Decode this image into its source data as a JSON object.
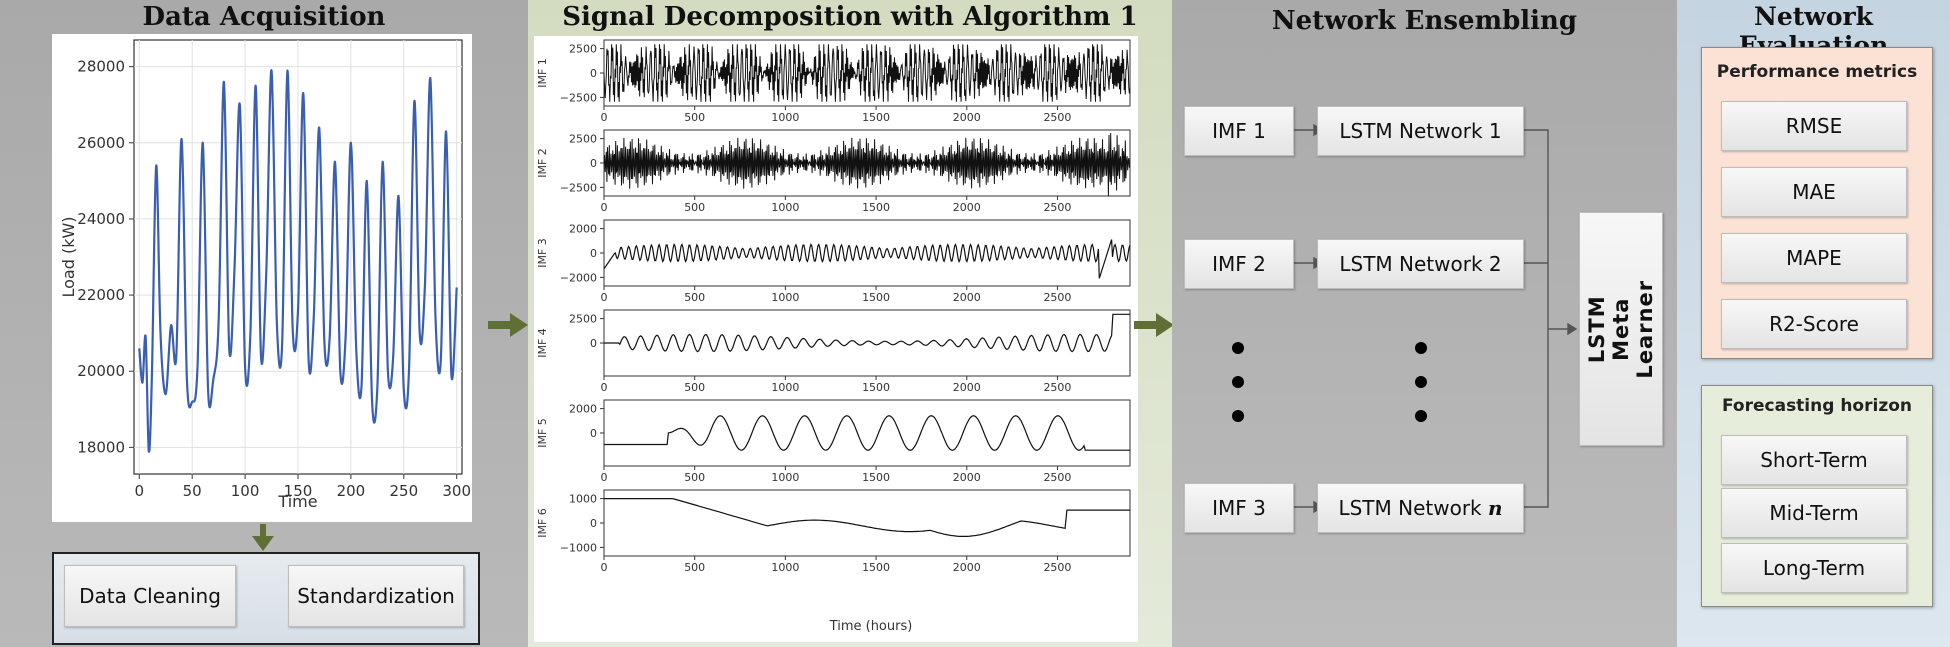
{
  "panels": {
    "acquisition": {
      "title": "Data Acquisition",
      "steps": [
        "Data Cleaning",
        "Standardization"
      ],
      "chart": {
        "xlabel": "Time",
        "ylabel": "Load (kW)",
        "xticks": [
          "0",
          "50",
          "100",
          "150",
          "200",
          "250",
          "300"
        ],
        "yticks": [
          "18000",
          "20000",
          "22000",
          "24000",
          "26000",
          "28000"
        ]
      }
    },
    "decomposition": {
      "title": "Signal Decomposition with Algorithm 1",
      "xlabel": "Time (hours)",
      "xticks": [
        "0",
        "500",
        "1000",
        "1500",
        "2000",
        "2500"
      ]
    },
    "ensembling": {
      "title": "Network Ensembling",
      "rows": [
        {
          "imf": "IMF 1",
          "net": "LSTM Network 1"
        },
        {
          "imf": "IMF 2",
          "net": "LSTM Network 2"
        },
        {
          "imf": "IMF 3",
          "net": "LSTM Network",
          "net_suffix": "n"
        }
      ],
      "meta_learner": "LSTM Meta Learner"
    },
    "evaluation": {
      "title": "Network Evaluation",
      "metrics_title": "Performance metrics",
      "metrics": [
        "RMSE",
        "MAE",
        "MAPE",
        "R2-Score"
      ],
      "horizon_title": "Forecasting horizon",
      "horizons": [
        "Short-Term",
        "Mid-Term",
        "Long-Term"
      ]
    }
  },
  "chart_data": [
    {
      "type": "line",
      "xlabel": "Time",
      "ylabel": "Load (kW)",
      "xlim": [
        -5,
        305
      ],
      "ylim": [
        17300,
        28700
      ],
      "series": [
        {
          "x": [
            0,
            3,
            6,
            9,
            12,
            16,
            20,
            25,
            30,
            35,
            40,
            45,
            50,
            55,
            60,
            65,
            70,
            75,
            80,
            85,
            90,
            95,
            100,
            105,
            110,
            115,
            120,
            125,
            130,
            135,
            140,
            145,
            150,
            155,
            160,
            165,
            170,
            175,
            180,
            185,
            190,
            195,
            200,
            205,
            210,
            215,
            220,
            225,
            230,
            235,
            240,
            245,
            250,
            255,
            260,
            265,
            270,
            275,
            280,
            285,
            290,
            295,
            300
          ],
          "y": [
            20600,
            19700,
            20900,
            17900,
            20000,
            25400,
            21000,
            19400,
            21200,
            20400,
            26100,
            19800,
            19200,
            20100,
            26000,
            19500,
            19800,
            21300,
            27600,
            20600,
            22700,
            27000,
            20100,
            21000,
            27500,
            20400,
            22600,
            27900,
            21300,
            20700,
            27900,
            21100,
            21600,
            27300,
            20300,
            21500,
            26400,
            20700,
            20900,
            25500,
            20000,
            20900,
            26000,
            20600,
            19600,
            25000,
            19200,
            19600,
            25500,
            20000,
            20400,
            24600,
            19500,
            20100,
            27100,
            21000,
            22300,
            27700,
            21400,
            20300,
            26300,
            19900,
            22200
          ]
        }
      ]
    },
    {
      "type": "line",
      "title": "",
      "xlabel": "Time (hours)",
      "xlim": [
        0,
        2900
      ],
      "series": [
        {
          "name": "IMF 1",
          "yticks": [
            2500,
            0,
            -2500
          ]
        },
        {
          "name": "IMF 2",
          "yticks": [
            2500,
            0,
            -2500
          ]
        },
        {
          "name": "IMF 3",
          "yticks": [
            2000,
            0,
            -2000
          ]
        },
        {
          "name": "IMF 4",
          "yticks": [
            2500,
            0
          ]
        },
        {
          "name": "IMF 5",
          "yticks": [
            2000,
            0
          ]
        },
        {
          "name": "IMF 6",
          "yticks": [
            1000,
            0,
            -1000
          ]
        }
      ]
    }
  ],
  "colors": {
    "load_line": "#3a5fb0",
    "arrow": "#5f6f35"
  }
}
